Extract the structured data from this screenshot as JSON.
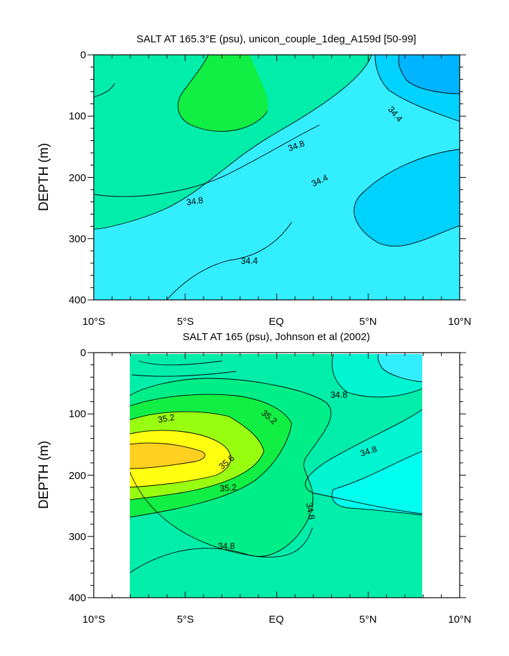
{
  "chart_data": [
    {
      "type": "contour",
      "title": "SALT AT 165.3°E (psu), unicon_couple_1deg_A159d [50-99]",
      "ylabel": "DEPTH (m)",
      "xlabel": "",
      "x_tick_labels": [
        "10°S",
        "5°S",
        "EQ",
        "5°N",
        "10°N"
      ],
      "x_ticks": [
        -10,
        -5,
        0,
        5,
        10
      ],
      "xlim": [
        -10,
        10
      ],
      "y_tick_labels": [
        "0",
        "100",
        "200",
        "300",
        "400"
      ],
      "y_ticks": [
        0,
        100,
        200,
        300,
        400
      ],
      "ylim": [
        0,
        400
      ],
      "y_reversed": true,
      "contour_labels": [
        "34.4",
        "34.8",
        "34.8",
        "34.4",
        "34.4"
      ],
      "regions": [
        {
          "name": "max",
          "color": "#11ee44"
        },
        {
          "name": "high",
          "color": "#00eeaa"
        },
        {
          "name": "mid",
          "color": "#00f5d0"
        },
        {
          "name": "low",
          "color": "#33eeff"
        },
        {
          "name": "lower",
          "color": "#00d2ff"
        },
        {
          "name": "min",
          "color": "#00b4ff"
        }
      ]
    },
    {
      "type": "contour",
      "title": "SALT AT 165 (psu), Johnson et al (2002)",
      "ylabel": "DEPTH (m)",
      "xlabel": "",
      "x_tick_labels": [
        "10°S",
        "5°S",
        "EQ",
        "5°N",
        "10°N"
      ],
      "x_ticks": [
        -10,
        -5,
        0,
        5,
        10
      ],
      "xlim": [
        -10,
        10
      ],
      "y_tick_labels": [
        "0",
        "100",
        "200",
        "300",
        "400"
      ],
      "y_ticks": [
        0,
        100,
        200,
        300,
        400
      ],
      "ylim": [
        0,
        400
      ],
      "y_reversed": true,
      "data_x_range": [
        -8,
        8
      ],
      "contour_labels": [
        "35.2",
        "35.2",
        "35.6",
        "35.2",
        "34.8",
        "34.8",
        "34.8",
        "34.8"
      ],
      "regions": [
        {
          "name": "max",
          "color": "#ffd020"
        },
        {
          "name": "very-high",
          "color": "#ffff10"
        },
        {
          "name": "high",
          "color": "#99ff10"
        },
        {
          "name": "mid-high",
          "color": "#11ee44"
        },
        {
          "name": "mid",
          "color": "#00ee88"
        },
        {
          "name": "base",
          "color": "#00eeaa"
        },
        {
          "name": "low",
          "color": "#00f5d0"
        },
        {
          "name": "lower",
          "color": "#00ffee"
        }
      ]
    }
  ]
}
